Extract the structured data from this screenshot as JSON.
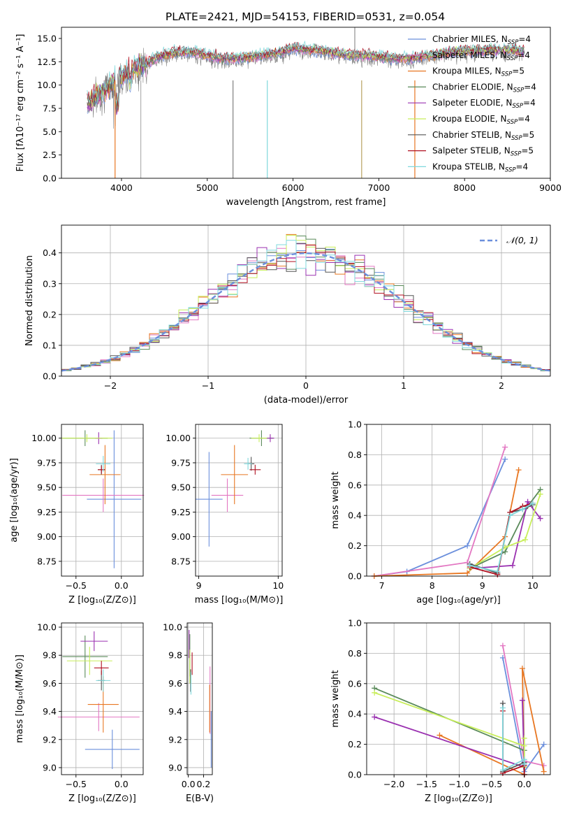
{
  "figure_title": "PLATE=2421, MJD=54153, FIBERID=0531, z=0.054",
  "legend_fits": [
    {
      "label": "Chabrier MILES, N",
      "sub": "SSP",
      "tail": "=4",
      "color": "#6b8fdc"
    },
    {
      "label": "Salpeter MILES, N",
      "sub": "SSP",
      "tail": "=4",
      "color": "#e377c2"
    },
    {
      "label": "Kroupa MILES, N",
      "sub": "SSP",
      "tail": "=5",
      "color": "#e87722"
    },
    {
      "label": "Chabrier ELODIE, N",
      "sub": "SSP",
      "tail": "=4",
      "color": "#5a8a5a"
    },
    {
      "label": "Salpeter ELODIE, N",
      "sub": "SSP",
      "tail": "=4",
      "color": "#9a30b0"
    },
    {
      "label": "Kroupa ELODIE, N",
      "sub": "SSP",
      "tail": "=4",
      "color": "#c8ee5a"
    },
    {
      "label": "Chabrier STELIB, N",
      "sub": "SSP",
      "tail": "=5",
      "color": "#555555"
    },
    {
      "label": "Salpeter STELIB, N",
      "sub": "SSP",
      "tail": "=5",
      "color": "#b01020"
    },
    {
      "label": "Kroupa STELIB, N",
      "sub": "SSP",
      "tail": "=4",
      "color": "#7fd8dc"
    }
  ],
  "chart_data": [
    {
      "id": "spectrum",
      "type": "line",
      "xlabel": "wavelength [Angstrom, rest frame]",
      "ylabel": "Flux [fλ10⁻¹⁷ erg cm⁻² s⁻¹ A⁻¹]",
      "xlim": [
        3300,
        9000
      ],
      "ylim": [
        0,
        16.2
      ],
      "xticks": [
        "4000",
        "5000",
        "6000",
        "7000",
        "8000",
        "9000"
      ],
      "yticks": [
        "0.0",
        "2.5",
        "5.0",
        "7.5",
        "10.0",
        "12.5",
        "15.0"
      ],
      "observed_data_color": "#808080",
      "model_series": [
        {
          "name": "Kroupa STELIB",
          "x": [
            3600,
            3700,
            3800,
            3900,
            4000,
            4100,
            4200,
            4300,
            4400,
            4600,
            4800,
            5000,
            5200,
            5400,
            5600,
            5800,
            6000,
            6200,
            6400,
            6600,
            6800,
            7000,
            7200,
            7400,
            7600,
            7800,
            8000,
            8200,
            8400,
            8600,
            8700
          ],
          "y": [
            8.0,
            8.8,
            9.5,
            10.2,
            11.0,
            11.6,
            12.0,
            12.4,
            13.0,
            13.5,
            13.6,
            13.2,
            12.9,
            12.9,
            13.2,
            13.4,
            14.0,
            13.8,
            13.6,
            13.3,
            13.2,
            13.1,
            12.9,
            12.9,
            13.2,
            13.5,
            13.7,
            13.7,
            13.8,
            13.8,
            13.6
          ]
        }
      ]
    },
    {
      "id": "residuals",
      "type": "histogram",
      "xlabel": "(data-model)/error",
      "ylabel": "Normed distribution",
      "xlim": [
        -2.5,
        2.5
      ],
      "ylim": [
        0,
        0.49
      ],
      "xticks": [
        "−2",
        "−1",
        "0",
        "1",
        "2"
      ],
      "yticks": [
        "0.0",
        "0.1",
        "0.2",
        "0.3",
        "0.4"
      ],
      "reference_curve": "N(0,1)",
      "legend": "𝒩(0, 1)"
    },
    {
      "id": "age_vs_Z",
      "type": "errorbar",
      "xlabel": "Z [log₁₀(Z/Z⊙)]",
      "ylabel": "age  [log₁₀(age/yr)]",
      "xlim": [
        -0.66,
        0.24
      ],
      "ylim": [
        8.6,
        10.14
      ],
      "xticks": [
        "−0.5",
        "0.0"
      ],
      "yticks": [
        "8.75",
        "9.00",
        "9.25",
        "9.50",
        "9.75",
        "10.00"
      ],
      "points": [
        {
          "series": "Chabrier MILES",
          "x": -0.08,
          "y": 9.38,
          "xerr": 0.3,
          "yerr": 0.7
        },
        {
          "series": "Salpeter MILES",
          "x": -0.2,
          "y": 9.42,
          "xerr": 0.45,
          "yerr": 0.17
        },
        {
          "series": "Kroupa MILES",
          "x": -0.18,
          "y": 9.63,
          "xerr": 0.17,
          "yerr": 0.3
        },
        {
          "series": "Chabrier ELODIE",
          "x": -0.4,
          "y": 10.0,
          "xerr": 0.25,
          "yerr": 0.08
        },
        {
          "series": "Salpeter ELODIE",
          "x": -0.25,
          "y": 10.0,
          "xerr": 0.04,
          "yerr": 0.06
        },
        {
          "series": "Kroupa ELODIE",
          "x": -0.38,
          "y": 10.0,
          "xerr": 0.28,
          "yerr": 0.04
        },
        {
          "series": "Chabrier STELIB",
          "x": -0.22,
          "y": 9.68,
          "xerr": 0.04,
          "yerr": 0.05
        },
        {
          "series": "Salpeter STELIB",
          "x": -0.22,
          "y": 9.68,
          "xerr": 0.04,
          "yerr": 0.04
        },
        {
          "series": "Kroupa STELIB",
          "x": -0.2,
          "y": 9.74,
          "xerr": 0.08,
          "yerr": 0.08
        }
      ]
    },
    {
      "id": "age_vs_mass",
      "type": "errorbar",
      "xlabel": "mass [log₁₀(M/M⊙)]",
      "ylabel": "",
      "xlim": [
        8.96,
        10.05
      ],
      "ylim": [
        8.6,
        10.14
      ],
      "xticks": [
        "9",
        "10"
      ],
      "yticks": [
        "8.75",
        "9.00",
        "9.25",
        "9.50",
        "9.75",
        "10.00"
      ],
      "points": [
        {
          "series": "Chabrier MILES",
          "x": 9.13,
          "y": 9.38,
          "xerr": 0.17,
          "yerr": 0.48
        },
        {
          "series": "Salpeter MILES",
          "x": 9.36,
          "y": 9.42,
          "xerr": 0.2,
          "yerr": 0.17
        },
        {
          "series": "Kroupa MILES",
          "x": 9.45,
          "y": 9.63,
          "xerr": 0.17,
          "yerr": 0.3
        },
        {
          "series": "Chabrier ELODIE",
          "x": 9.79,
          "y": 10.0,
          "xerr": 0.15,
          "yerr": 0.08
        },
        {
          "series": "Salpeter ELODIE",
          "x": 9.9,
          "y": 10.0,
          "xerr": 0.05,
          "yerr": 0.04
        },
        {
          "series": "Kroupa ELODIE",
          "x": 9.76,
          "y": 10.0,
          "xerr": 0.1,
          "yerr": 0.04
        },
        {
          "series": "Chabrier STELIB",
          "x": 9.66,
          "y": 9.74,
          "xerr": 0.04,
          "yerr": 0.07
        },
        {
          "series": "Salpeter STELIB",
          "x": 9.71,
          "y": 9.68,
          "xerr": 0.07,
          "yerr": 0.05
        },
        {
          "series": "Kroupa STELIB",
          "x": 9.62,
          "y": 9.74,
          "xerr": 0.05,
          "yerr": 0.06
        }
      ]
    },
    {
      "id": "weight_vs_age",
      "type": "line",
      "xlabel": "age  [log₁₀(age/yr)]",
      "ylabel": "mass weight",
      "xlim": [
        6.7,
        10.35
      ],
      "ylim": [
        0,
        1.0
      ],
      "xticks": [
        "7",
        "8",
        "9",
        "10"
      ],
      "yticks": [
        "0.0",
        "0.2",
        "0.4",
        "0.6",
        "0.8",
        "1.0"
      ],
      "series": [
        {
          "name": "Chabrier MILES",
          "x": [
            6.85,
            7.5,
            8.7,
            9.45
          ],
          "y": [
            0.0,
            0.03,
            0.2,
            0.77
          ]
        },
        {
          "name": "Salpeter MILES",
          "x": [
            6.85,
            8.7,
            9.45
          ],
          "y": [
            0.0,
            0.09,
            0.85
          ]
        },
        {
          "name": "Kroupa MILES",
          "x": [
            6.85,
            8.7,
            9.45,
            9.72
          ],
          "y": [
            0.0,
            0.02,
            0.26,
            0.7
          ]
        },
        {
          "name": "Chabrier ELODIE",
          "x": [
            8.75,
            9.45,
            9.9,
            10.15
          ],
          "y": [
            0.05,
            0.16,
            0.46,
            0.57
          ]
        },
        {
          "name": "Salpeter ELODIE",
          "x": [
            8.75,
            9.6,
            9.9,
            10.15
          ],
          "y": [
            0.05,
            0.07,
            0.49,
            0.38
          ]
        },
        {
          "name": "Kroupa ELODIE",
          "x": [
            8.75,
            9.45,
            9.85,
            10.15
          ],
          "y": [
            0.05,
            0.19,
            0.24,
            0.54
          ]
        },
        {
          "name": "Chabrier STELIB",
          "x": [
            8.75,
            9.3,
            9.55,
            9.8,
            10.0
          ],
          "y": [
            0.08,
            0.02,
            0.42,
            0.44,
            0.47
          ]
        },
        {
          "name": "Salpeter STELIB",
          "x": [
            8.75,
            9.3,
            9.55,
            9.8,
            10.0
          ],
          "y": [
            0.06,
            0.01,
            0.42,
            0.46,
            0.48
          ]
        },
        {
          "name": "Kroupa STELIB",
          "x": [
            8.75,
            9.3,
            9.55,
            9.8,
            10.0
          ],
          "y": [
            0.07,
            0.03,
            0.4,
            0.44,
            0.48
          ]
        }
      ]
    },
    {
      "id": "mass_vs_Z",
      "type": "errorbar",
      "xlabel": "Z [log₁₀(Z/Z⊙)]",
      "ylabel": "mass [log₁₀(M/M⊙)]",
      "xlim": [
        -0.66,
        0.24
      ],
      "ylim": [
        8.95,
        10.03
      ],
      "xticks": [
        "−0.5",
        "0.0"
      ],
      "yticks": [
        "9.0",
        "9.2",
        "9.4",
        "9.6",
        "9.8",
        "10.0"
      ],
      "points": [
        {
          "series": "Chabrier MILES",
          "x": -0.1,
          "y": 9.13,
          "xerr": 0.3,
          "yerr": 0.14
        },
        {
          "series": "Salpeter MILES",
          "x": -0.25,
          "y": 9.36,
          "xerr": 0.45,
          "yerr": 0.1
        },
        {
          "series": "Kroupa MILES",
          "x": -0.2,
          "y": 9.45,
          "xerr": 0.17,
          "yerr": 0.2
        },
        {
          "series": "Chabrier ELODIE",
          "x": -0.4,
          "y": 9.79,
          "xerr": 0.25,
          "yerr": 0.15
        },
        {
          "series": "Salpeter ELODIE",
          "x": -0.3,
          "y": 9.9,
          "xerr": 0.15,
          "yerr": 0.07
        },
        {
          "series": "Kroupa ELODIE",
          "x": -0.35,
          "y": 9.76,
          "xerr": 0.25,
          "yerr": 0.1
        },
        {
          "series": "Chabrier STELIB",
          "x": -0.22,
          "y": 9.62,
          "xerr": 0.04,
          "yerr": 0.07
        },
        {
          "series": "Salpeter STELIB",
          "x": -0.22,
          "y": 9.71,
          "xerr": 0.08,
          "yerr": 0.05
        },
        {
          "series": "Kroupa STELIB",
          "x": -0.2,
          "y": 9.62,
          "xerr": 0.08,
          "yerr": 0.08
        }
      ]
    },
    {
      "id": "mass_vs_EBV",
      "type": "errorbar",
      "xlabel": "E(B-V)",
      "ylabel": "",
      "xlim": [
        -0.015,
        0.315
      ],
      "ylim": [
        8.95,
        10.03
      ],
      "xticks": [
        "0.0",
        "0.2"
      ],
      "yticks": [
        "9.0",
        "9.2",
        "9.4",
        "9.6",
        "9.8",
        "10.0"
      ],
      "points": [
        {
          "series": "Chabrier MILES",
          "x": 0.3,
          "y": 9.2,
          "xerr": 0.0,
          "yerr": 0.2
        },
        {
          "series": "Salpeter MILES",
          "x": 0.285,
          "y": 9.48,
          "xerr": 0.0,
          "yerr": 0.24
        },
        {
          "series": "Kroupa MILES",
          "x": 0.28,
          "y": 9.42,
          "xerr": 0.0,
          "yerr": 0.17
        },
        {
          "series": "Chabrier ELODIE",
          "x": 0.02,
          "y": 9.8,
          "xerr": 0.0,
          "yerr": 0.15
        },
        {
          "series": "Salpeter ELODIE",
          "x": 0.01,
          "y": 9.88,
          "xerr": 0.0,
          "yerr": 0.1
        },
        {
          "series": "Kroupa ELODIE",
          "x": 0.02,
          "y": 9.72,
          "xerr": 0.0,
          "yerr": 0.12
        },
        {
          "series": "Chabrier STELIB",
          "x": 0.03,
          "y": 9.62,
          "xerr": 0.0,
          "yerr": 0.08
        },
        {
          "series": "Salpeter STELIB",
          "x": 0.05,
          "y": 9.74,
          "xerr": 0.0,
          "yerr": 0.08
        },
        {
          "series": "Kroupa STELIB",
          "x": 0.035,
          "y": 9.6,
          "xerr": 0.0,
          "yerr": 0.08
        }
      ]
    },
    {
      "id": "weight_vs_Z",
      "type": "line",
      "xlabel": "Z [log₁₀(Z/Z⊙)]",
      "ylabel": "mass weight",
      "xlim": [
        -2.42,
        0.4
      ],
      "ylim": [
        0,
        1.0
      ],
      "xticks": [
        "−2.0",
        "−1.5",
        "−1.0",
        "−0.5",
        "0.0"
      ],
      "yticks": [
        "0.0",
        "0.2",
        "0.4",
        "0.6",
        "0.8",
        "1.0"
      ],
      "series": [
        {
          "name": "Chabrier MILES",
          "x": [
            -0.33,
            0.0,
            0.3
          ],
          "y": [
            0.77,
            0.02,
            0.2
          ]
        },
        {
          "name": "Salpeter MILES",
          "x": [
            -0.33,
            0.0,
            0.3
          ],
          "y": [
            0.85,
            0.09,
            0.06
          ]
        },
        {
          "name": "Kroupa MILES",
          "x": [
            -1.3,
            0.0,
            -0.03,
            0.3
          ],
          "y": [
            0.26,
            0.0,
            0.7,
            0.02
          ]
        },
        {
          "name": "Chabrier ELODIE",
          "x": [
            -2.3,
            0.0,
            0.0
          ],
          "y": [
            0.57,
            0.16,
            0.05
          ]
        },
        {
          "name": "Salpeter ELODIE",
          "x": [
            -2.3,
            0.0,
            -0.03,
            0.0
          ],
          "y": [
            0.38,
            0.05,
            0.49,
            0.07
          ]
        },
        {
          "name": "Kroupa ELODIE",
          "x": [
            -2.3,
            0.0,
            0.0,
            0.0
          ],
          "y": [
            0.54,
            0.19,
            0.24,
            0.05
          ]
        },
        {
          "name": "Chabrier STELIB",
          "x": [
            -0.33,
            -0.33,
            0.0,
            0.0
          ],
          "y": [
            0.47,
            0.02,
            0.08,
            0.0
          ]
        },
        {
          "name": "Salpeter STELIB",
          "x": [
            -0.33,
            -0.33,
            0.0,
            0.0
          ],
          "y": [
            0.42,
            0.01,
            0.06,
            0.0
          ]
        },
        {
          "name": "Kroupa STELIB",
          "x": [
            -0.33,
            -0.33,
            0.0,
            0.0
          ],
          "y": [
            0.44,
            0.03,
            0.1,
            0.07
          ]
        }
      ]
    }
  ]
}
